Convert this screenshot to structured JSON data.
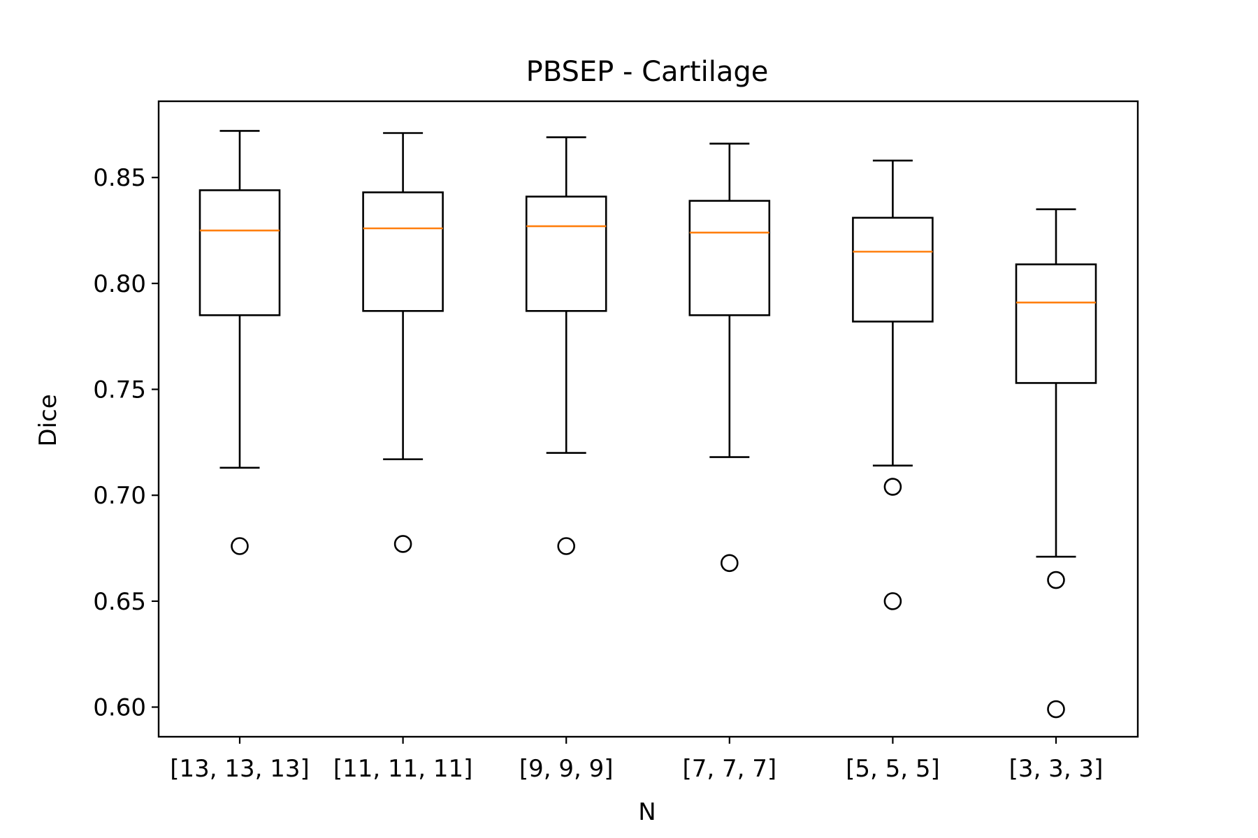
{
  "chart_data": {
    "type": "box",
    "title": "PBSEP - Cartilage",
    "xlabel": "N",
    "ylabel": "Dice",
    "ylim": [
      0.586,
      0.886
    ],
    "yticks": [
      0.6,
      0.65,
      0.7,
      0.75,
      0.8,
      0.85
    ],
    "ytick_labels": [
      "0.60",
      "0.65",
      "0.70",
      "0.75",
      "0.80",
      "0.85"
    ],
    "grid": false,
    "colors": {
      "box": "#000000",
      "median": "#ff7f0e",
      "background": "#ffffff"
    },
    "categories": [
      "[13, 13, 13]",
      "[11, 11, 11]",
      "[9, 9, 9]",
      "[7, 7, 7]",
      "[5, 5, 5]",
      "[3, 3, 3]"
    ],
    "boxes": [
      {
        "whisker_low": 0.713,
        "q1": 0.785,
        "median": 0.825,
        "q3": 0.844,
        "whisker_high": 0.872,
        "outliers": [
          0.676
        ]
      },
      {
        "whisker_low": 0.717,
        "q1": 0.787,
        "median": 0.826,
        "q3": 0.843,
        "whisker_high": 0.871,
        "outliers": [
          0.677
        ]
      },
      {
        "whisker_low": 0.72,
        "q1": 0.787,
        "median": 0.827,
        "q3": 0.841,
        "whisker_high": 0.869,
        "outliers": [
          0.676
        ]
      },
      {
        "whisker_low": 0.718,
        "q1": 0.785,
        "median": 0.824,
        "q3": 0.839,
        "whisker_high": 0.866,
        "outliers": [
          0.668
        ]
      },
      {
        "whisker_low": 0.714,
        "q1": 0.782,
        "median": 0.815,
        "q3": 0.831,
        "whisker_high": 0.858,
        "outliers": [
          0.704,
          0.65
        ]
      },
      {
        "whisker_low": 0.671,
        "q1": 0.753,
        "median": 0.791,
        "q3": 0.809,
        "whisker_high": 0.835,
        "outliers": [
          0.66,
          0.599
        ]
      }
    ]
  }
}
